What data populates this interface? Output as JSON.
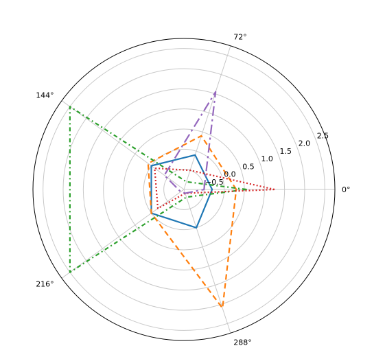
{
  "chart_data": {
    "type": "radar",
    "title": "",
    "angle_tick_labels": [
      "0°",
      "72°",
      "144°",
      "216°",
      "288°"
    ],
    "angles_deg": [
      0,
      72,
      144,
      216,
      288
    ],
    "radial_tick_labels": [
      "−0.5",
      "0.0",
      "0.5",
      "1.0",
      "1.5",
      "2.0",
      "2.5"
    ],
    "radial_ticks": [
      -0.5,
      0.0,
      0.5,
      1.0,
      1.5,
      2.0,
      2.5
    ],
    "rlim": [
      -1.0,
      2.75
    ],
    "grid": true,
    "legend": "none",
    "series": [
      {
        "color": "#1f77b4",
        "style": "solid",
        "values": [
          -0.3,
          -0.1,
          0.0,
          0.0,
          -0.0
        ]
      },
      {
        "color": "#ff7f0e",
        "style": "dashed",
        "values": [
          0.3,
          0.4,
          0.1,
          0.0,
          2.1
        ]
      },
      {
        "color": "#2ca02c",
        "style": "dashdot",
        "values": [
          0.55,
          -0.8,
          2.5,
          2.5,
          -0.8
        ]
      },
      {
        "color": "#d62728",
        "style": "dotted",
        "values": [
          1.25,
          -0.5,
          -0.1,
          -0.2,
          -0.9
        ]
      },
      {
        "color": "#9467bd",
        "style": "longdashdot",
        "values": [
          -0.5,
          1.55,
          -0.4,
          -0.9,
          -0.9
        ]
      }
    ]
  }
}
